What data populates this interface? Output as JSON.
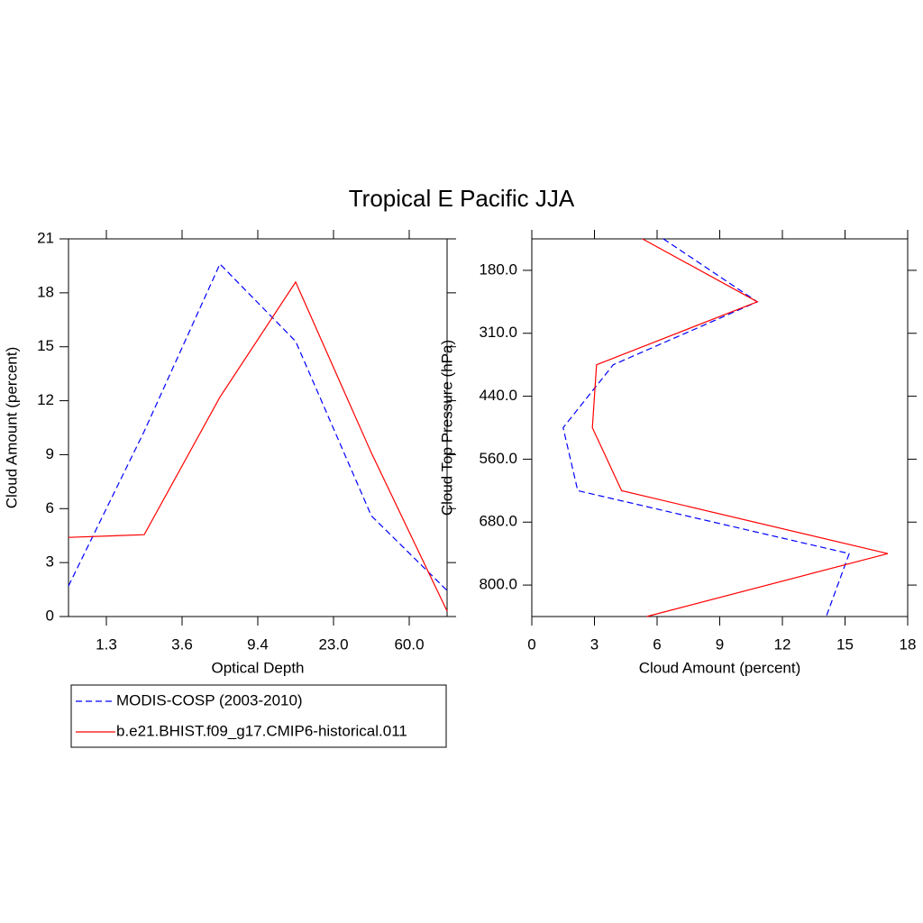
{
  "title": "Tropical E Pacific JJA",
  "chart_data": [
    {
      "type": "line",
      "xlabel": "Optical Depth",
      "ylabel": "Cloud Amount (percent)",
      "x": [
        0,
        1,
        2,
        3,
        4,
        5
      ],
      "xlim": [
        0,
        5
      ],
      "xticks": [
        {
          "value": 0.5,
          "label": "1.3"
        },
        {
          "value": 1.5,
          "label": "3.6"
        },
        {
          "value": 2.5,
          "label": "9.4"
        },
        {
          "value": 3.5,
          "label": "23.0"
        },
        {
          "value": 4.5,
          "label": "60.0"
        }
      ],
      "ylim": [
        0,
        21
      ],
      "yticks": [
        0,
        3,
        6,
        9,
        12,
        15,
        18,
        21
      ],
      "series": [
        {
          "name": "MODIS-COSP (2003-2010)",
          "color": "#0000ff",
          "dashed": true,
          "values": [
            1.7,
            10.3,
            19.6,
            15.3,
            5.6,
            1.45
          ]
        },
        {
          "name": "b.e21.BHIST.f09_g17.CMIP6-historical.011",
          "color": "#ff0000",
          "dashed": false,
          "values": [
            4.4,
            4.55,
            12.2,
            18.6,
            9.1,
            0.3
          ]
        }
      ]
    },
    {
      "type": "line-horizontal",
      "xlabel": "Cloud Amount (percent)",
      "ylabel": "Cloud Top Pressure (hPa)",
      "y": [
        0,
        1,
        2,
        3,
        4,
        5,
        6
      ],
      "ylim": [
        6,
        0
      ],
      "yticks": [
        {
          "value": 0.5,
          "label": "180.0"
        },
        {
          "value": 1.5,
          "label": "310.0"
        },
        {
          "value": 2.5,
          "label": "440.0"
        },
        {
          "value": 3.5,
          "label": "560.0"
        },
        {
          "value": 4.5,
          "label": "680.0"
        },
        {
          "value": 5.5,
          "label": "800.0"
        }
      ],
      "xlim": [
        0,
        18
      ],
      "xticks": [
        0,
        3,
        6,
        9,
        12,
        15,
        18
      ],
      "series": [
        {
          "color": "#0000ff",
          "dashed": true,
          "values": [
            6.3,
            10.8,
            3.9,
            1.5,
            2.2,
            15.2,
            14.1
          ]
        },
        {
          "color": "#ff0000",
          "dashed": false,
          "values": [
            5.3,
            10.8,
            3.1,
            2.9,
            4.3,
            17.05,
            5.5
          ]
        }
      ]
    }
  ]
}
